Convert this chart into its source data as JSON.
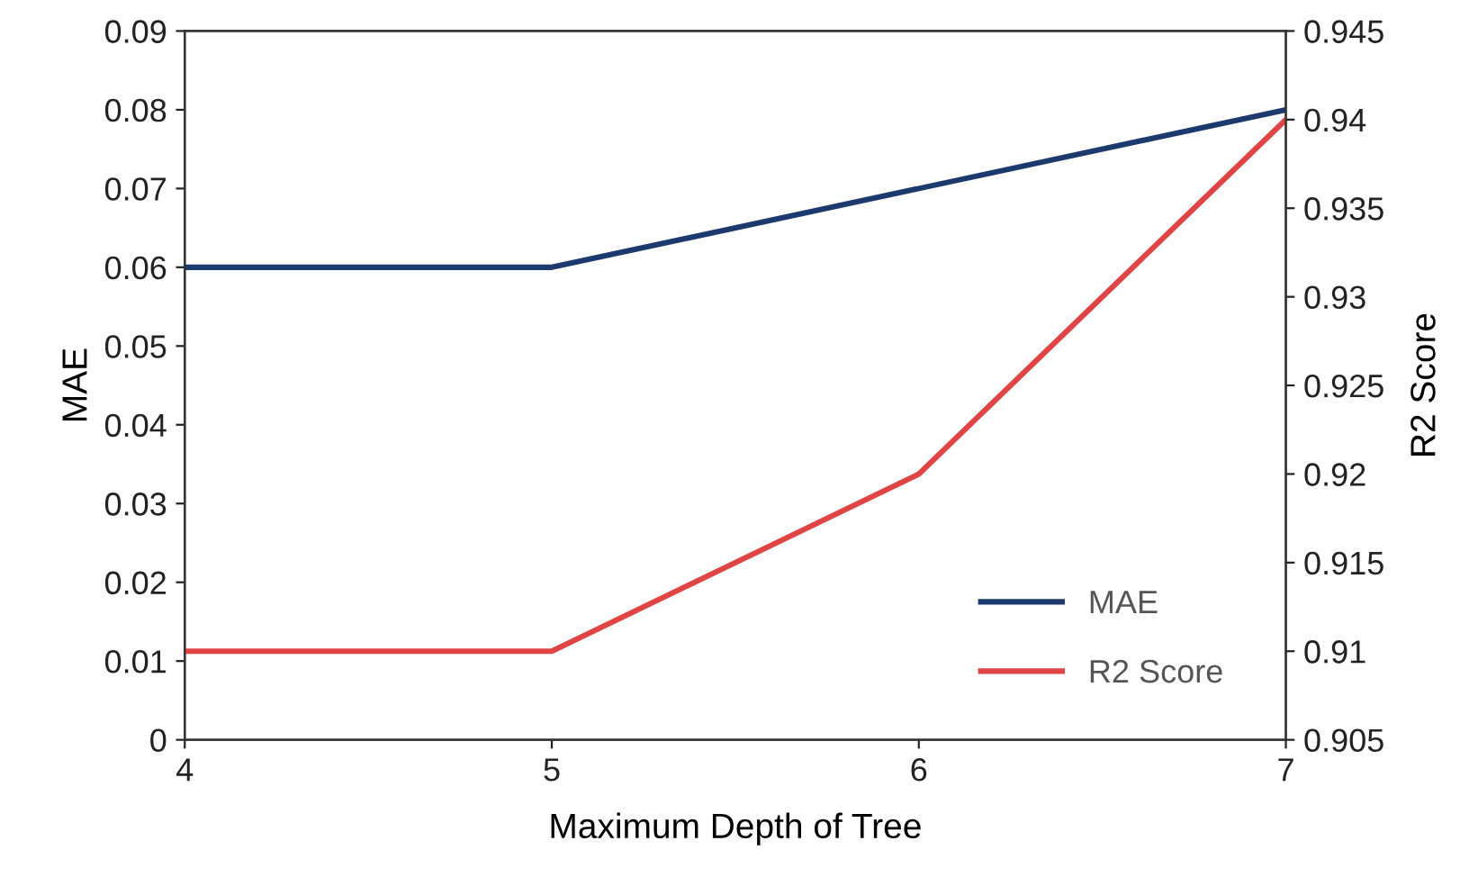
{
  "chart_data": {
    "type": "line",
    "xlabel": "Maximum Depth of Tree",
    "ylabel": "MAE",
    "y2label": "R2 Score",
    "x": [
      4,
      5,
      6,
      7
    ],
    "series": [
      {
        "name": "MAE",
        "color": "#1c3a6e",
        "values": [
          0.06,
          0.06,
          0.07,
          0.08
        ]
      },
      {
        "name": "R2 Score",
        "color": "#e04545",
        "axis": "y2",
        "values": [
          0.91,
          0.91,
          0.92,
          0.94
        ]
      }
    ],
    "xlim": [
      4,
      7
    ],
    "xticks": [
      4,
      5,
      6,
      7
    ],
    "ylim": [
      0,
      0.09
    ],
    "yticks": [
      0,
      0.01,
      0.02,
      0.03,
      0.04,
      0.05,
      0.06,
      0.07,
      0.08,
      0.09
    ],
    "y2lim": [
      0.905,
      0.945
    ],
    "y2ticks": [
      0.905,
      0.91,
      0.915,
      0.92,
      0.925,
      0.93,
      0.935,
      0.94,
      0.945
    ],
    "grid": false,
    "legend": "bottom right",
    "marker": "none",
    "line_style": "solid"
  }
}
